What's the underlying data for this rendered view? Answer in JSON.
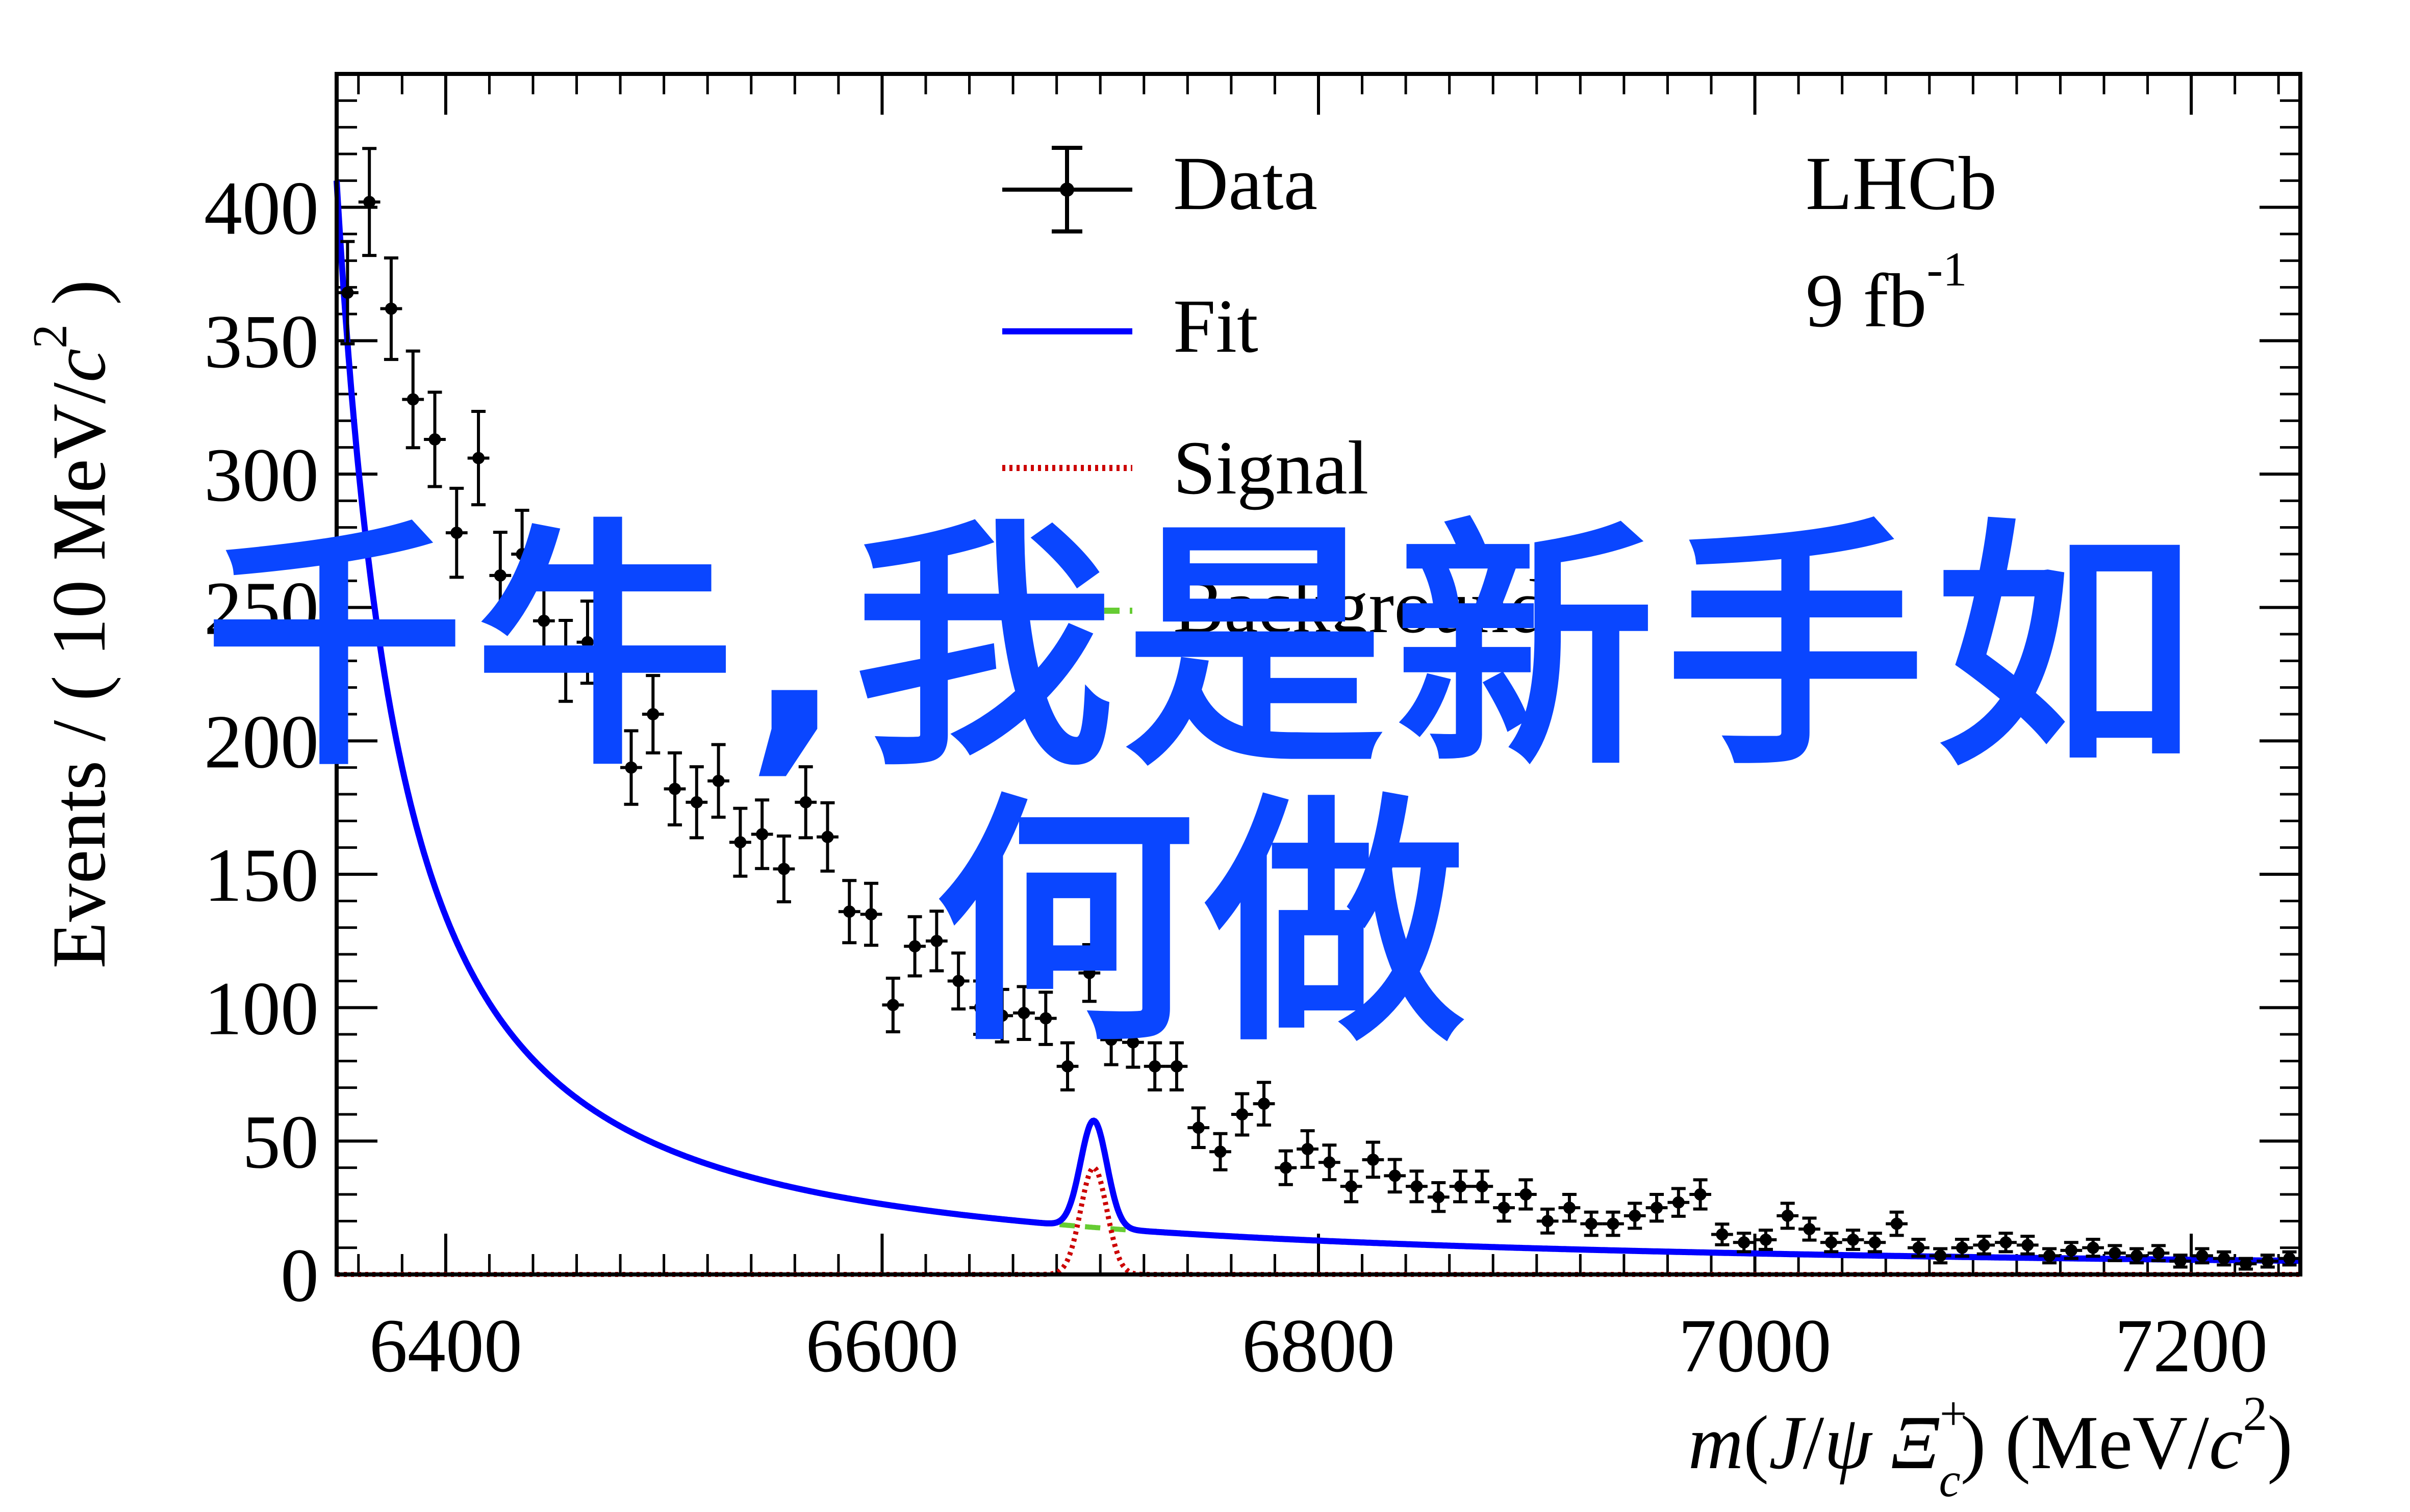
{
  "chart_data": {
    "type": "scatter",
    "xlabel_parts": [
      "m",
      "(",
      "J",
      "/",
      "ψ",
      " ",
      "Ξ",
      "+",
      "c",
      ")",
      " (MeV/",
      "c",
      "2",
      ")"
    ],
    "ylabel_parts": [
      "Events / ( 10 MeV/",
      "c",
      "2",
      " )"
    ],
    "xlim": [
      6350,
      7250
    ],
    "ylim": [
      0,
      450
    ],
    "x_ticks": [
      6400,
      6600,
      6800,
      7000,
      7200
    ],
    "y_ticks": [
      0,
      50,
      100,
      150,
      200,
      250,
      300,
      350,
      400
    ],
    "legend_placement": "top-center",
    "legend": [
      {
        "label": "Data",
        "style": "errorbar",
        "color": "#000000"
      },
      {
        "label": "Fit",
        "style": "solid",
        "color": "#0000ff"
      },
      {
        "label": "Signal",
        "style": "dotted",
        "color": "#cc0000"
      },
      {
        "label": "Background",
        "style": "dashed",
        "color": "#66cc33"
      }
    ],
    "annotation": {
      "experiment": "LHCb",
      "lumi_value": "9 fb",
      "lumi_exp": "-1"
    },
    "data_points": [
      [
        6355,
        368
      ],
      [
        6365,
        402
      ],
      [
        6375,
        362
      ],
      [
        6385,
        328
      ],
      [
        6395,
        313
      ],
      [
        6405,
        278
      ],
      [
        6415,
        306
      ],
      [
        6425,
        262
      ],
      [
        6435,
        270
      ],
      [
        6445,
        245
      ],
      [
        6455,
        230
      ],
      [
        6465,
        237
      ],
      [
        6475,
        220
      ],
      [
        6485,
        190
      ],
      [
        6495,
        210
      ],
      [
        6505,
        182
      ],
      [
        6515,
        177
      ],
      [
        6525,
        185
      ],
      [
        6535,
        162
      ],
      [
        6545,
        165
      ],
      [
        6555,
        152
      ],
      [
        6565,
        177
      ],
      [
        6575,
        164
      ],
      [
        6585,
        136
      ],
      [
        6595,
        135
      ],
      [
        6605,
        101
      ],
      [
        6615,
        123
      ],
      [
        6625,
        125
      ],
      [
        6635,
        110
      ],
      [
        6645,
        100
      ],
      [
        6655,
        97
      ],
      [
        6665,
        98
      ],
      [
        6675,
        96
      ],
      [
        6685,
        78
      ],
      [
        6695,
        113
      ],
      [
        6705,
        88
      ],
      [
        6715,
        87
      ],
      [
        6725,
        78
      ],
      [
        6735,
        78
      ],
      [
        6745,
        55
      ],
      [
        6755,
        46
      ],
      [
        6765,
        60
      ],
      [
        6775,
        64
      ],
      [
        6785,
        40
      ],
      [
        6795,
        47
      ],
      [
        6805,
        42
      ],
      [
        6815,
        33
      ],
      [
        6825,
        43
      ],
      [
        6835,
        37
      ],
      [
        6845,
        33
      ],
      [
        6855,
        29
      ],
      [
        6865,
        33
      ],
      [
        6875,
        33
      ],
      [
        6885,
        25
      ],
      [
        6895,
        30
      ],
      [
        6905,
        20
      ],
      [
        6915,
        25
      ],
      [
        6925,
        19
      ],
      [
        6935,
        19
      ],
      [
        6945,
        22
      ],
      [
        6955,
        25
      ],
      [
        6965,
        27
      ],
      [
        6975,
        30
      ],
      [
        6985,
        15
      ],
      [
        6995,
        12
      ],
      [
        7005,
        13
      ],
      [
        7015,
        22
      ],
      [
        7025,
        17
      ],
      [
        7035,
        12
      ],
      [
        7045,
        13
      ],
      [
        7055,
        12
      ],
      [
        7065,
        19
      ],
      [
        7075,
        10
      ],
      [
        7085,
        7
      ],
      [
        7095,
        10
      ],
      [
        7105,
        11
      ],
      [
        7115,
        12
      ],
      [
        7125,
        11
      ],
      [
        7135,
        7
      ],
      [
        7145,
        9
      ],
      [
        7155,
        10
      ],
      [
        7165,
        8
      ],
      [
        7175,
        7
      ],
      [
        7185,
        8
      ],
      [
        7195,
        5
      ],
      [
        7205,
        7
      ],
      [
        7215,
        6
      ],
      [
        7225,
        4
      ],
      [
        7235,
        5
      ],
      [
        7245,
        6
      ]
    ],
    "signal": {
      "mean": 6697,
      "sigma": 6,
      "peak": 40
    },
    "background": {
      "model": "power",
      "amplitude": 410,
      "x0": 6350,
      "scale": 41,
      "power": 1.4
    }
  },
  "overlay_text": {
    "line1": "千牛,我是新手如",
    "line2": "何做"
  }
}
